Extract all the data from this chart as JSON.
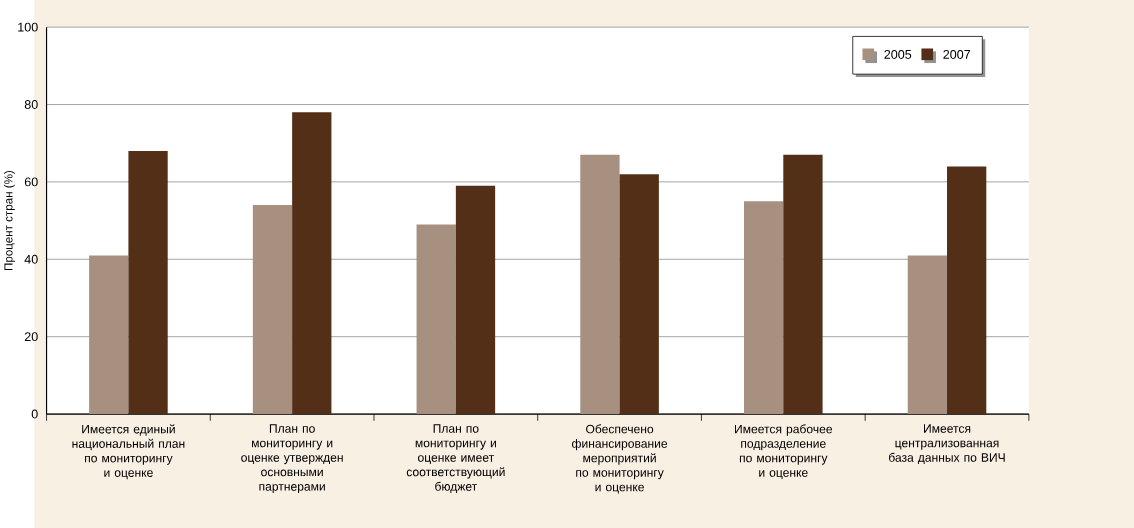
{
  "chart_data": {
    "type": "bar",
    "ylabel": "Процент стран (%)",
    "categories": [
      "Имеется единый национальный план по мониторингу и оценке",
      "План по мониторингу и оценке утвержден основными партнерами",
      "План по мониторингу и оценке имеет соответствующий бюджет",
      "Обеспечено финансирование мероприятий по мониторингу и оценке",
      "Имеется рабочее подразделение по мониторингу и оценке",
      "Имеется централизованная база данных по ВИЧ"
    ],
    "series": [
      {
        "name": "2005",
        "color": "#a89080",
        "values": [
          41,
          54,
          49,
          67,
          55,
          41
        ]
      },
      {
        "name": "2007",
        "color": "#532f18",
        "values": [
          68,
          78,
          59,
          62,
          67,
          64
        ]
      }
    ],
    "ylim": [
      0,
      100
    ],
    "yticks": [
      0,
      20,
      40,
      60,
      80,
      100
    ],
    "grid": "y",
    "legend": "top right"
  }
}
